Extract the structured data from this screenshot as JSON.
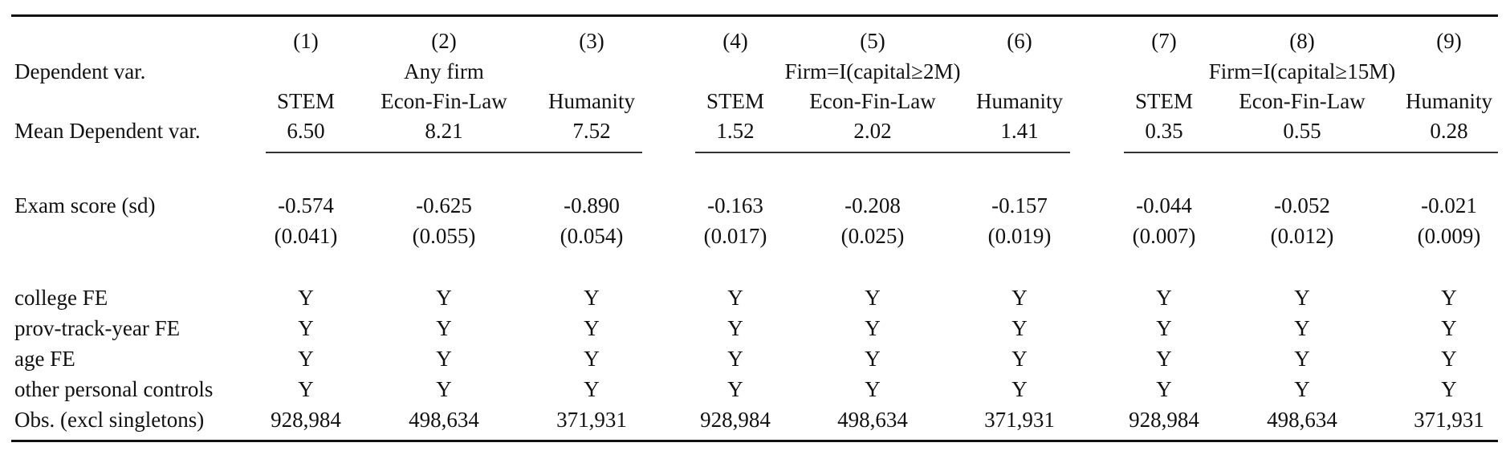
{
  "table": {
    "column_numbers": [
      "(1)",
      "(2)",
      "(3)",
      "(4)",
      "(5)",
      "(6)",
      "(7)",
      "(8)",
      "(9)"
    ],
    "dependent_var_label": "Dependent var.",
    "groups": [
      "Any firm",
      "Firm=I(capital≥2M)",
      "Firm=I(capital≥15M)"
    ],
    "subheaders": [
      "STEM",
      "Econ-Fin-Law",
      "Humanity",
      "STEM",
      "Econ-Fin-Law",
      "Humanity",
      "STEM",
      "Econ-Fin-Law",
      "Humanity"
    ],
    "mean_label": "Mean Dependent var.",
    "means": [
      "6.50",
      "8.21",
      "7.52",
      "1.52",
      "2.02",
      "1.41",
      "0.35",
      "0.55",
      "0.28"
    ],
    "rows": [
      {
        "label": "Exam score (sd)",
        "values": [
          "-0.574",
          "-0.625",
          "-0.890",
          "-0.163",
          "-0.208",
          "-0.157",
          "-0.044",
          "-0.052",
          "-0.021"
        ]
      },
      {
        "label": "",
        "values": [
          "(0.041)",
          "(0.055)",
          "(0.054)",
          "(0.017)",
          "(0.025)",
          "(0.019)",
          "(0.007)",
          "(0.012)",
          "(0.009)"
        ]
      },
      {
        "label": "college FE",
        "values": [
          "Y",
          "Y",
          "Y",
          "Y",
          "Y",
          "Y",
          "Y",
          "Y",
          "Y"
        ]
      },
      {
        "label": "prov-track-year FE",
        "values": [
          "Y",
          "Y",
          "Y",
          "Y",
          "Y",
          "Y",
          "Y",
          "Y",
          "Y"
        ]
      },
      {
        "label": "age FE",
        "values": [
          "Y",
          "Y",
          "Y",
          "Y",
          "Y",
          "Y",
          "Y",
          "Y",
          "Y"
        ]
      },
      {
        "label": "other personal controls",
        "values": [
          "Y",
          "Y",
          "Y",
          "Y",
          "Y",
          "Y",
          "Y",
          "Y",
          "Y"
        ]
      },
      {
        "label": "Obs. (excl singletons)",
        "values": [
          "928,984",
          "498,634",
          "371,931",
          "928,984",
          "498,634",
          "371,931",
          "928,984",
          "498,634",
          "371,931"
        ]
      }
    ]
  }
}
